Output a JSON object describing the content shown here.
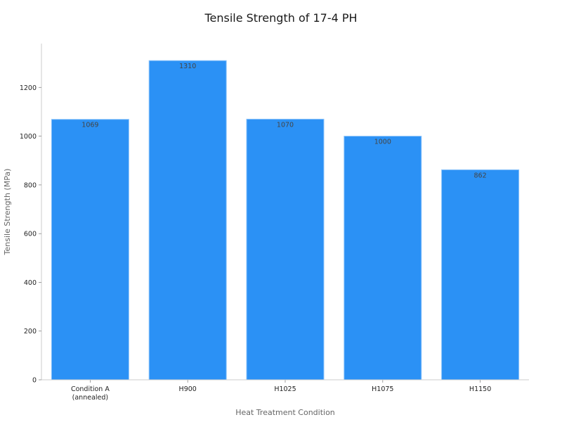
{
  "chart_data": {
    "type": "bar",
    "title": "Tensile Strength of 17-4 PH",
    "xlabel": "Heat Treatment Condition",
    "ylabel": "Tensile Strength (MPa)",
    "categories": [
      [
        "Condition A",
        "(annealed)"
      ],
      [
        "H900"
      ],
      [
        "H1025"
      ],
      [
        "H1075"
      ],
      [
        "H1150"
      ]
    ],
    "values": [
      1069,
      1310,
      1070,
      1000,
      862
    ],
    "data_labels": [
      "1069",
      "1310",
      "1070",
      "1000",
      "862"
    ],
    "ylim": [
      0,
      1380
    ],
    "yticks": [
      0,
      200,
      400,
      600,
      800,
      1000,
      1200
    ],
    "grid": false,
    "legend": "none",
    "bar_color": "#2b91f5",
    "bar_edge_color": "#8cc4fb"
  }
}
